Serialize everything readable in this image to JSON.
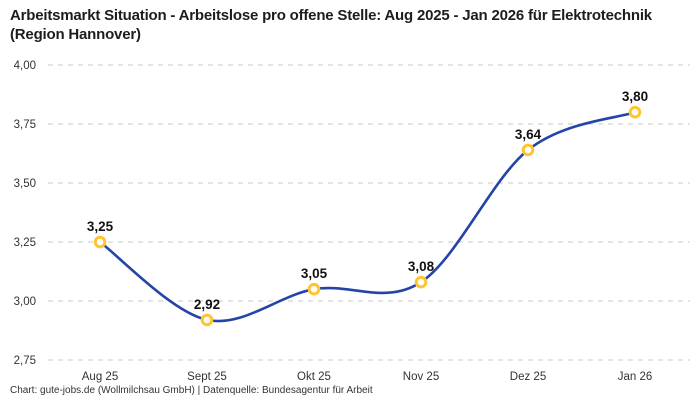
{
  "header": {
    "title": "Arbeitsmarkt Situation - Arbeitslose pro offene Stelle: Aug 2025 - Jan 2026 für Elektrotechnik (Region Hannover)"
  },
  "footer": {
    "text": "Chart: gute-jobs.de (Wollmilchsau GmbH) | Datenquelle: Bundesagentur für Arbeit"
  },
  "chart_data": {
    "type": "line",
    "title": "Arbeitsmarkt Situation - Arbeitslose pro offene Stelle: Aug 2025 - Jan 2026 für Elektrotechnik (Region Hannover)",
    "categories": [
      "Aug 25",
      "Sept 25",
      "Okt 25",
      "Nov 25",
      "Dez 25",
      "Jan 26"
    ],
    "values": [
      3.25,
      2.92,
      3.05,
      3.08,
      3.64,
      3.8
    ],
    "value_labels": [
      "3,25",
      "2,92",
      "3,05",
      "3,08",
      "3,64",
      "3,80"
    ],
    "y_ticks": [
      {
        "label": "4,00",
        "value": 4.0
      },
      {
        "label": "3,75",
        "value": 3.75
      },
      {
        "label": "3,50",
        "value": 3.5
      },
      {
        "label": "3,25",
        "value": 3.25
      },
      {
        "label": "3,00",
        "value": 3.0
      },
      {
        "label": "2,75",
        "value": 2.75
      }
    ],
    "ylim": [
      2.75,
      4.0
    ],
    "xlabel": "",
    "ylabel": "",
    "legend": "none",
    "grid": "horizontal-dashed",
    "curve": "smooth",
    "colors": {
      "line": "#2444A8",
      "marker_ring": "#FFC52F",
      "marker_fill": "#FFFFFF",
      "grid_line": "#c9c9c9",
      "tick_label": "#333333",
      "data_label": "#111111"
    }
  }
}
